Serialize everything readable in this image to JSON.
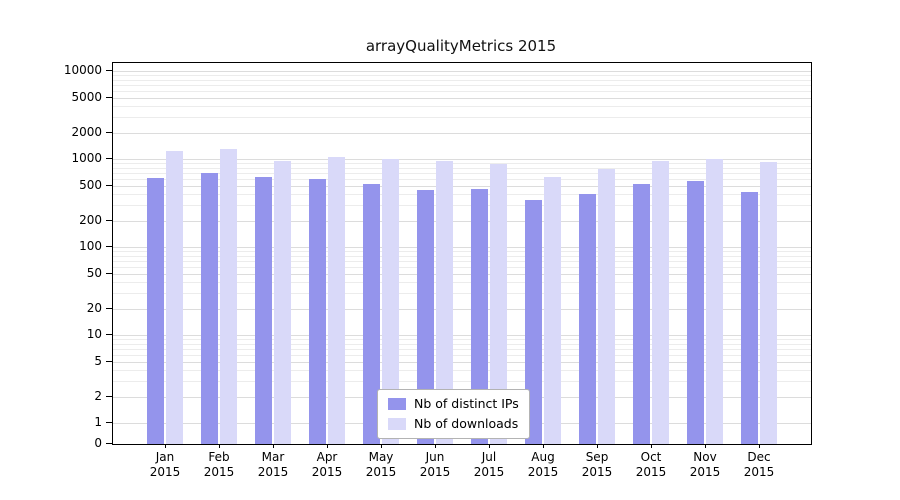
{
  "title": "arrayQualityMetrics 2015",
  "chart_data": {
    "type": "bar",
    "title": "arrayQualityMetrics 2015",
    "scale": "log",
    "grid": true,
    "legend_position": "bottom-center",
    "year": "2015",
    "categories": [
      "Jan",
      "Feb",
      "Mar",
      "Apr",
      "May",
      "Jun",
      "Jul",
      "Aug",
      "Sep",
      "Oct",
      "Nov",
      "Dec"
    ],
    "yticks": [
      0,
      1,
      2,
      5,
      10,
      20,
      50,
      100,
      200,
      500,
      1000,
      2000,
      5000,
      10000
    ],
    "ylim": [
      0,
      14000
    ],
    "series": [
      {
        "name": "Nb of distinct IPs",
        "color": "#9494ec",
        "values": [
          610,
          700,
          620,
          600,
          520,
          450,
          460,
          340,
          400,
          520,
          560,
          420
        ]
      },
      {
        "name": "Nb of downloads",
        "color": "#d9d9f9",
        "values": [
          1230,
          1290,
          960,
          1060,
          1010,
          940,
          870,
          630,
          780,
          940,
          990,
          930
        ]
      }
    ]
  }
}
